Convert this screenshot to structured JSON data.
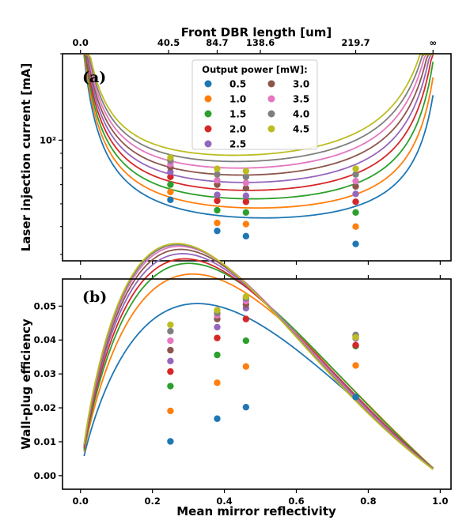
{
  "colors": [
    "#1f77b4",
    "#ff7f0e",
    "#2ca02c",
    "#d62728",
    "#9467bd",
    "#8c564b",
    "#e377c2",
    "#7f7f7f",
    "#bcbd22"
  ],
  "chart_data": [
    {
      "type": "line",
      "panel_label": "(a)",
      "xlabel_top": "Front DBR length [um]",
      "top_ticks": [
        {
          "x": 0.0,
          "label": "0.0"
        },
        {
          "x": 0.245,
          "label": "40.5"
        },
        {
          "x": 0.38,
          "label": "84.7"
        },
        {
          "x": 0.5,
          "label": "138.6"
        },
        {
          "x": 0.765,
          "label": "219.7"
        },
        {
          "x": 0.98,
          "label": "∞"
        }
      ],
      "ylabel": "Laser injection current [mA]",
      "yscale": "log",
      "yticks": [
        {
          "value": 100,
          "label": "10²"
        }
      ],
      "xlim": [
        -0.05,
        1.03
      ],
      "ylim": [
        38,
        200
      ],
      "legend": {
        "title": "Output power [mW]:",
        "placement": "top-center",
        "entries": [
          "0.5",
          "1.0",
          "1.5",
          "2.0",
          "2.5",
          "3.0",
          "3.5",
          "4.0",
          "4.5"
        ]
      },
      "x": [
        0.25,
        0.38,
        0.46,
        0.765
      ],
      "series": [
        {
          "name": "0.5",
          "values": [
            62,
            48.3,
            46.3,
            43.5
          ]
        },
        {
          "name": "1.0",
          "values": [
            66,
            51.5,
            51,
            50
          ]
        },
        {
          "name": "1.5",
          "values": [
            70,
            57,
            56,
            56
          ]
        },
        {
          "name": "2.0",
          "values": [
            74.5,
            61.5,
            61,
            61
          ]
        },
        {
          "name": "2.5",
          "values": [
            77.5,
            64.5,
            64,
            65
          ]
        },
        {
          "name": "3.0",
          "values": [
            80.5,
            70,
            68,
            69
          ]
        },
        {
          "name": "3.5",
          "values": [
            82.5,
            72.5,
            71,
            72
          ]
        },
        {
          "name": "4.0",
          "values": [
            85,
            76,
            74.5,
            76
          ]
        },
        {
          "name": "4.5",
          "values": [
            87,
            79.5,
            78,
            79.5
          ]
        }
      ]
    },
    {
      "type": "line",
      "panel_label": "(b)",
      "xlabel": "Mean mirror reflectivity",
      "ylabel": "Wall-plug efficiency",
      "xticks": [
        "0.0",
        "0.2",
        "0.4",
        "0.6",
        "0.8",
        "1.0"
      ],
      "yticks": [
        "0.00",
        "0.01",
        "0.02",
        "0.03",
        "0.04",
        "0.05"
      ],
      "xlim": [
        -0.05,
        1.03
      ],
      "ylim": [
        -0.004,
        0.058
      ],
      "x": [
        0.25,
        0.38,
        0.46,
        0.765
      ],
      "series": [
        {
          "name": "0.5",
          "values": [
            0.0101,
            0.0168,
            0.0202,
            0.0232
          ]
        },
        {
          "name": "1.0",
          "values": [
            0.0191,
            0.0274,
            0.0322,
            0.0325
          ]
        },
        {
          "name": "1.5",
          "values": [
            0.0264,
            0.0356,
            0.0398,
            0.0382
          ]
        },
        {
          "name": "2.0",
          "values": [
            0.0307,
            0.0406,
            0.0462,
            0.0385
          ]
        },
        {
          "name": "2.5",
          "values": [
            0.0338,
            0.0438,
            0.0494,
            0.0405
          ]
        },
        {
          "name": "3.0",
          "values": [
            0.037,
            0.0462,
            0.0505,
            0.041
          ]
        },
        {
          "name": "3.5",
          "values": [
            0.0398,
            0.0473,
            0.0515,
            0.0413
          ]
        },
        {
          "name": "4.0",
          "values": [
            0.0426,
            0.048,
            0.0523,
            0.0415
          ]
        },
        {
          "name": "4.5",
          "values": [
            0.0445,
            0.0488,
            0.0528,
            0.0408
          ]
        }
      ]
    }
  ]
}
